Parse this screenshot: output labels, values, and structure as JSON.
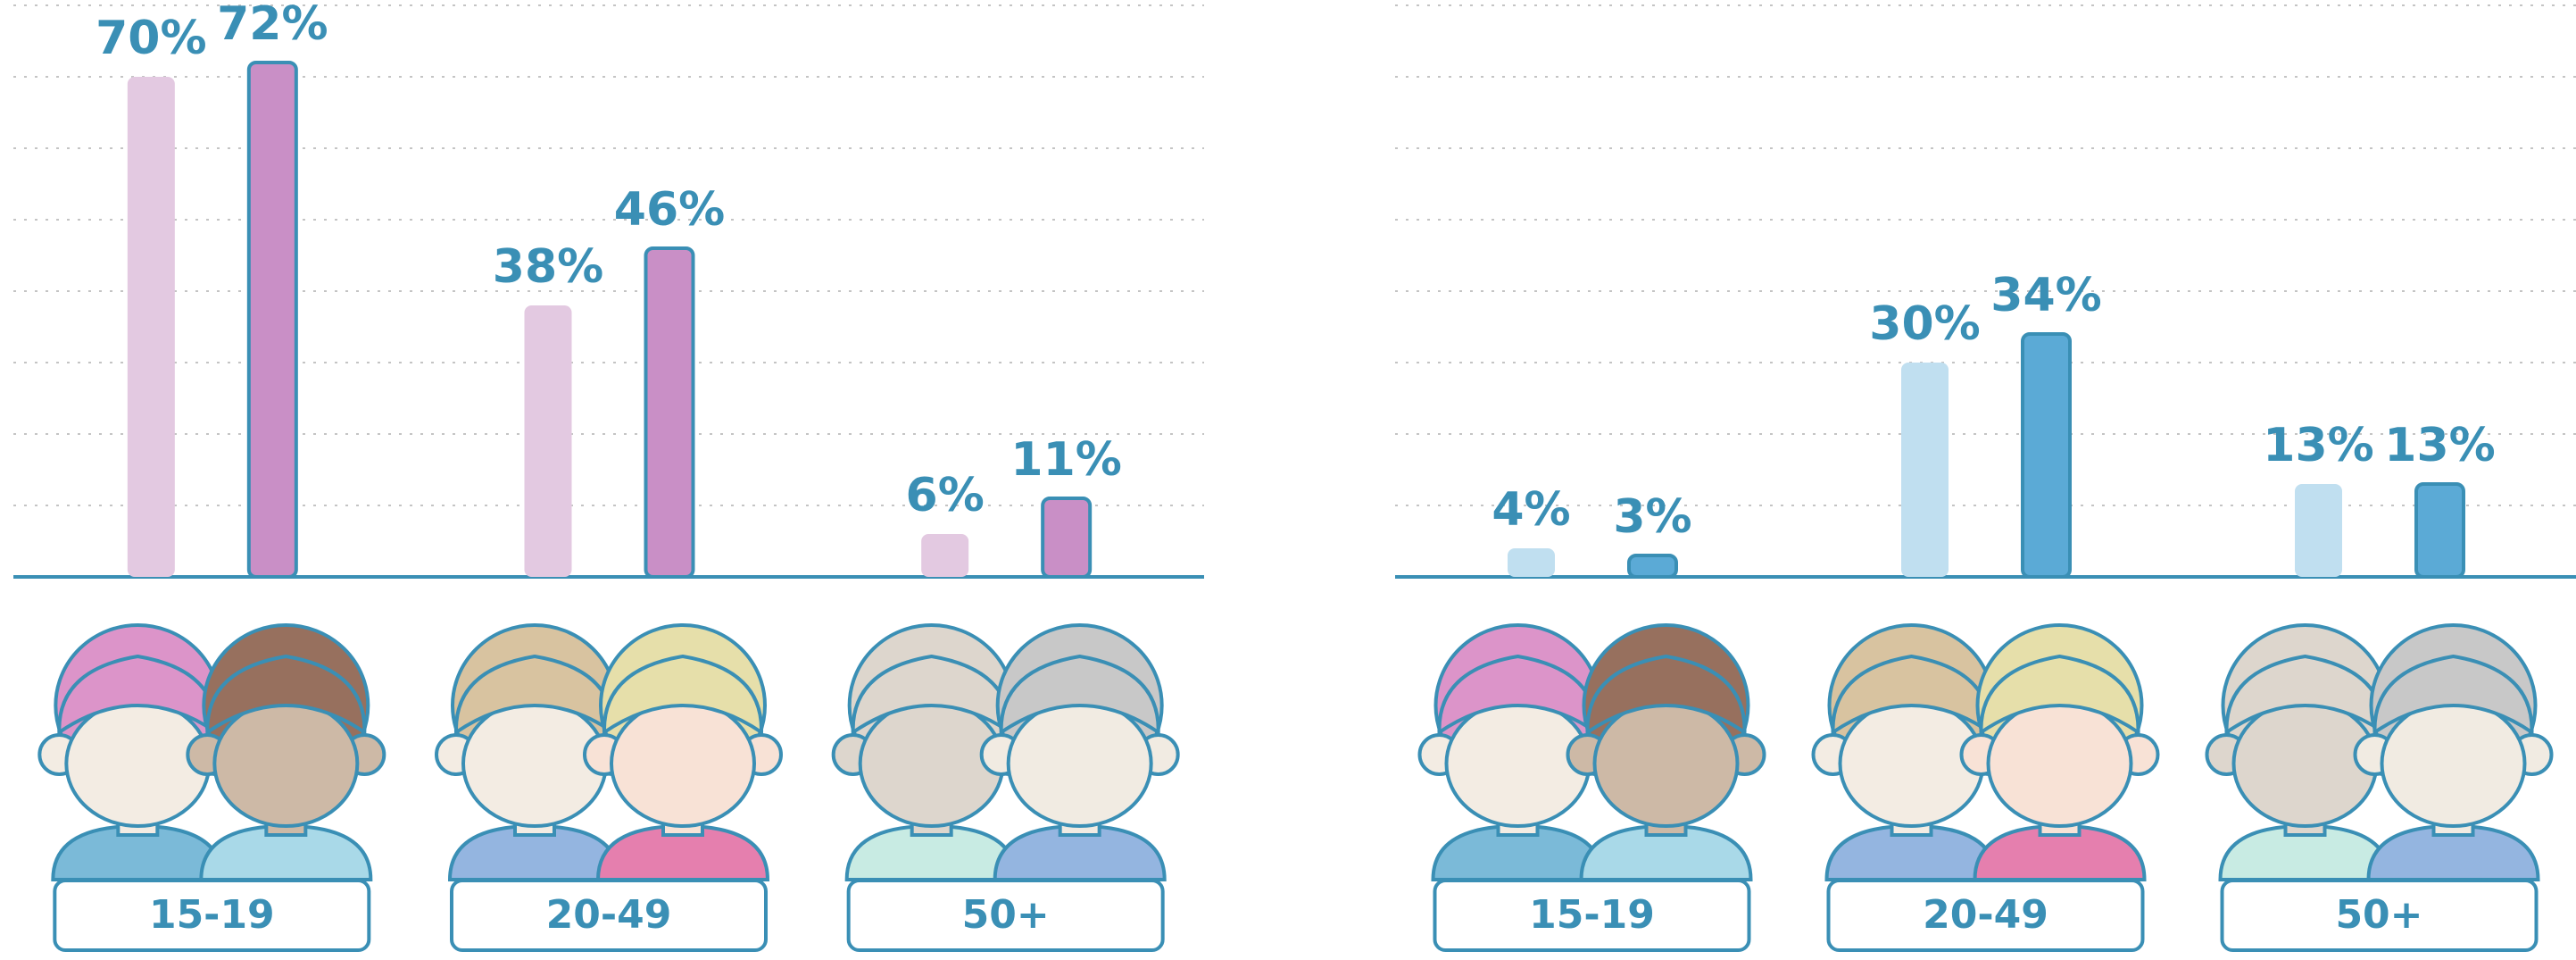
{
  "chart_data": [
    {
      "type": "bar",
      "categories": [
        "15-19",
        "20-49",
        "50+"
      ],
      "series": [
        {
          "color": "#e3c9e1",
          "values": [
            70,
            38,
            6
          ],
          "value_labels": [
            "70%",
            "38%",
            "6%"
          ]
        },
        {
          "color": "#c98fc6",
          "edgecolor": "#3a8fb5",
          "values": [
            72,
            46,
            11
          ],
          "value_labels": [
            "72%",
            "46%",
            "11%"
          ]
        }
      ],
      "ylim": [
        0,
        80
      ],
      "yticks": [
        0,
        10,
        20,
        30,
        40,
        50,
        60,
        70,
        80
      ],
      "grid": true
    },
    {
      "type": "bar",
      "categories": [
        "15-19",
        "20-49",
        "50+"
      ],
      "series": [
        {
          "color": "#c0dff0",
          "values": [
            4,
            30,
            13
          ],
          "value_labels": [
            "4%",
            "30%",
            "13%"
          ]
        },
        {
          "color": "#5baad6",
          "edgecolor": "#3a8fb5",
          "values": [
            3,
            34,
            13
          ],
          "value_labels": [
            "3%",
            "34%",
            "13%"
          ]
        }
      ],
      "ylim": [
        0,
        80
      ],
      "yticks": [
        0,
        10,
        20,
        30,
        40,
        50,
        60,
        70,
        80
      ],
      "grid": true
    }
  ]
}
